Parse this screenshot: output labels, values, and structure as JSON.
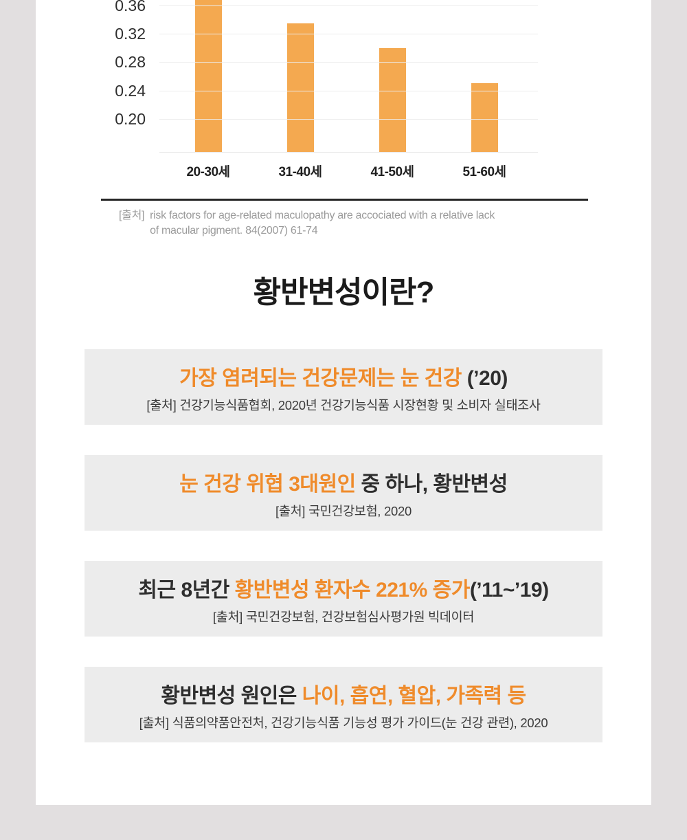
{
  "theme": {
    "page_background": "#e2dfe0",
    "card_background": "#ffffff",
    "box_background": "#ececec",
    "bar_orange": "#f4a950",
    "accent_orange": "#ef8b2b",
    "dark_text": "#2e2e2e",
    "source_gray": "#9b9b9b"
  },
  "chart_data": {
    "type": "bar",
    "categories": [
      "20-30세",
      "31-40세",
      "41-50세",
      "51-60세"
    ],
    "values": [
      0.38,
      0.335,
      0.3,
      0.25
    ],
    "clipped_top": [
      true,
      false,
      false,
      false
    ],
    "yticks": [
      "0.36",
      "0.32",
      "0.28",
      "0.24",
      "0.20"
    ],
    "ylim": [
      0.155,
      0.375
    ],
    "grid": true,
    "title": "",
    "xlabel": "",
    "ylabel": ""
  },
  "chart_source": {
    "prefix": "[출처]",
    "line1": "risk factors for age-related maculopathy are accociated with a relative lack",
    "line2": "of macular pigment. 84(2007) 61-74"
  },
  "section_title": "황반변성이란?",
  "info_boxes": [
    {
      "headline_parts": [
        {
          "text": "가장 염려되는 건강문제는 눈 건강",
          "emphasis": true
        },
        {
          "text": " (’20)",
          "emphasis": false
        }
      ],
      "source": "[출처] 건강기능식품협회, 2020년 건강기능식품 시장현황 및 소비자 실태조사"
    },
    {
      "headline_parts": [
        {
          "text": "눈 건강 위협 3대원인",
          "emphasis": true
        },
        {
          "text": " 중 하나, 황반변성",
          "emphasis": false
        }
      ],
      "source": "[출처] 국민건강보험, 2020"
    },
    {
      "headline_parts": [
        {
          "text": "최근 8년간 ",
          "emphasis": false
        },
        {
          "text": "황반변성 환자수 221% 증가",
          "emphasis": true
        },
        {
          "text": "(’11~’19)",
          "emphasis": false
        }
      ],
      "source": "[출처] 국민건강보험, 건강보험심사평가원 빅데이터"
    },
    {
      "headline_parts": [
        {
          "text": "황반변성 원인은 ",
          "emphasis": false
        },
        {
          "text": "나이, 흡연, 혈압, 가족력 등",
          "emphasis": true
        }
      ],
      "source": "[출처] 식품의약품안전처, 건강기능식품 기능성 평가 가이드(눈 건강 관련), 2020"
    }
  ]
}
